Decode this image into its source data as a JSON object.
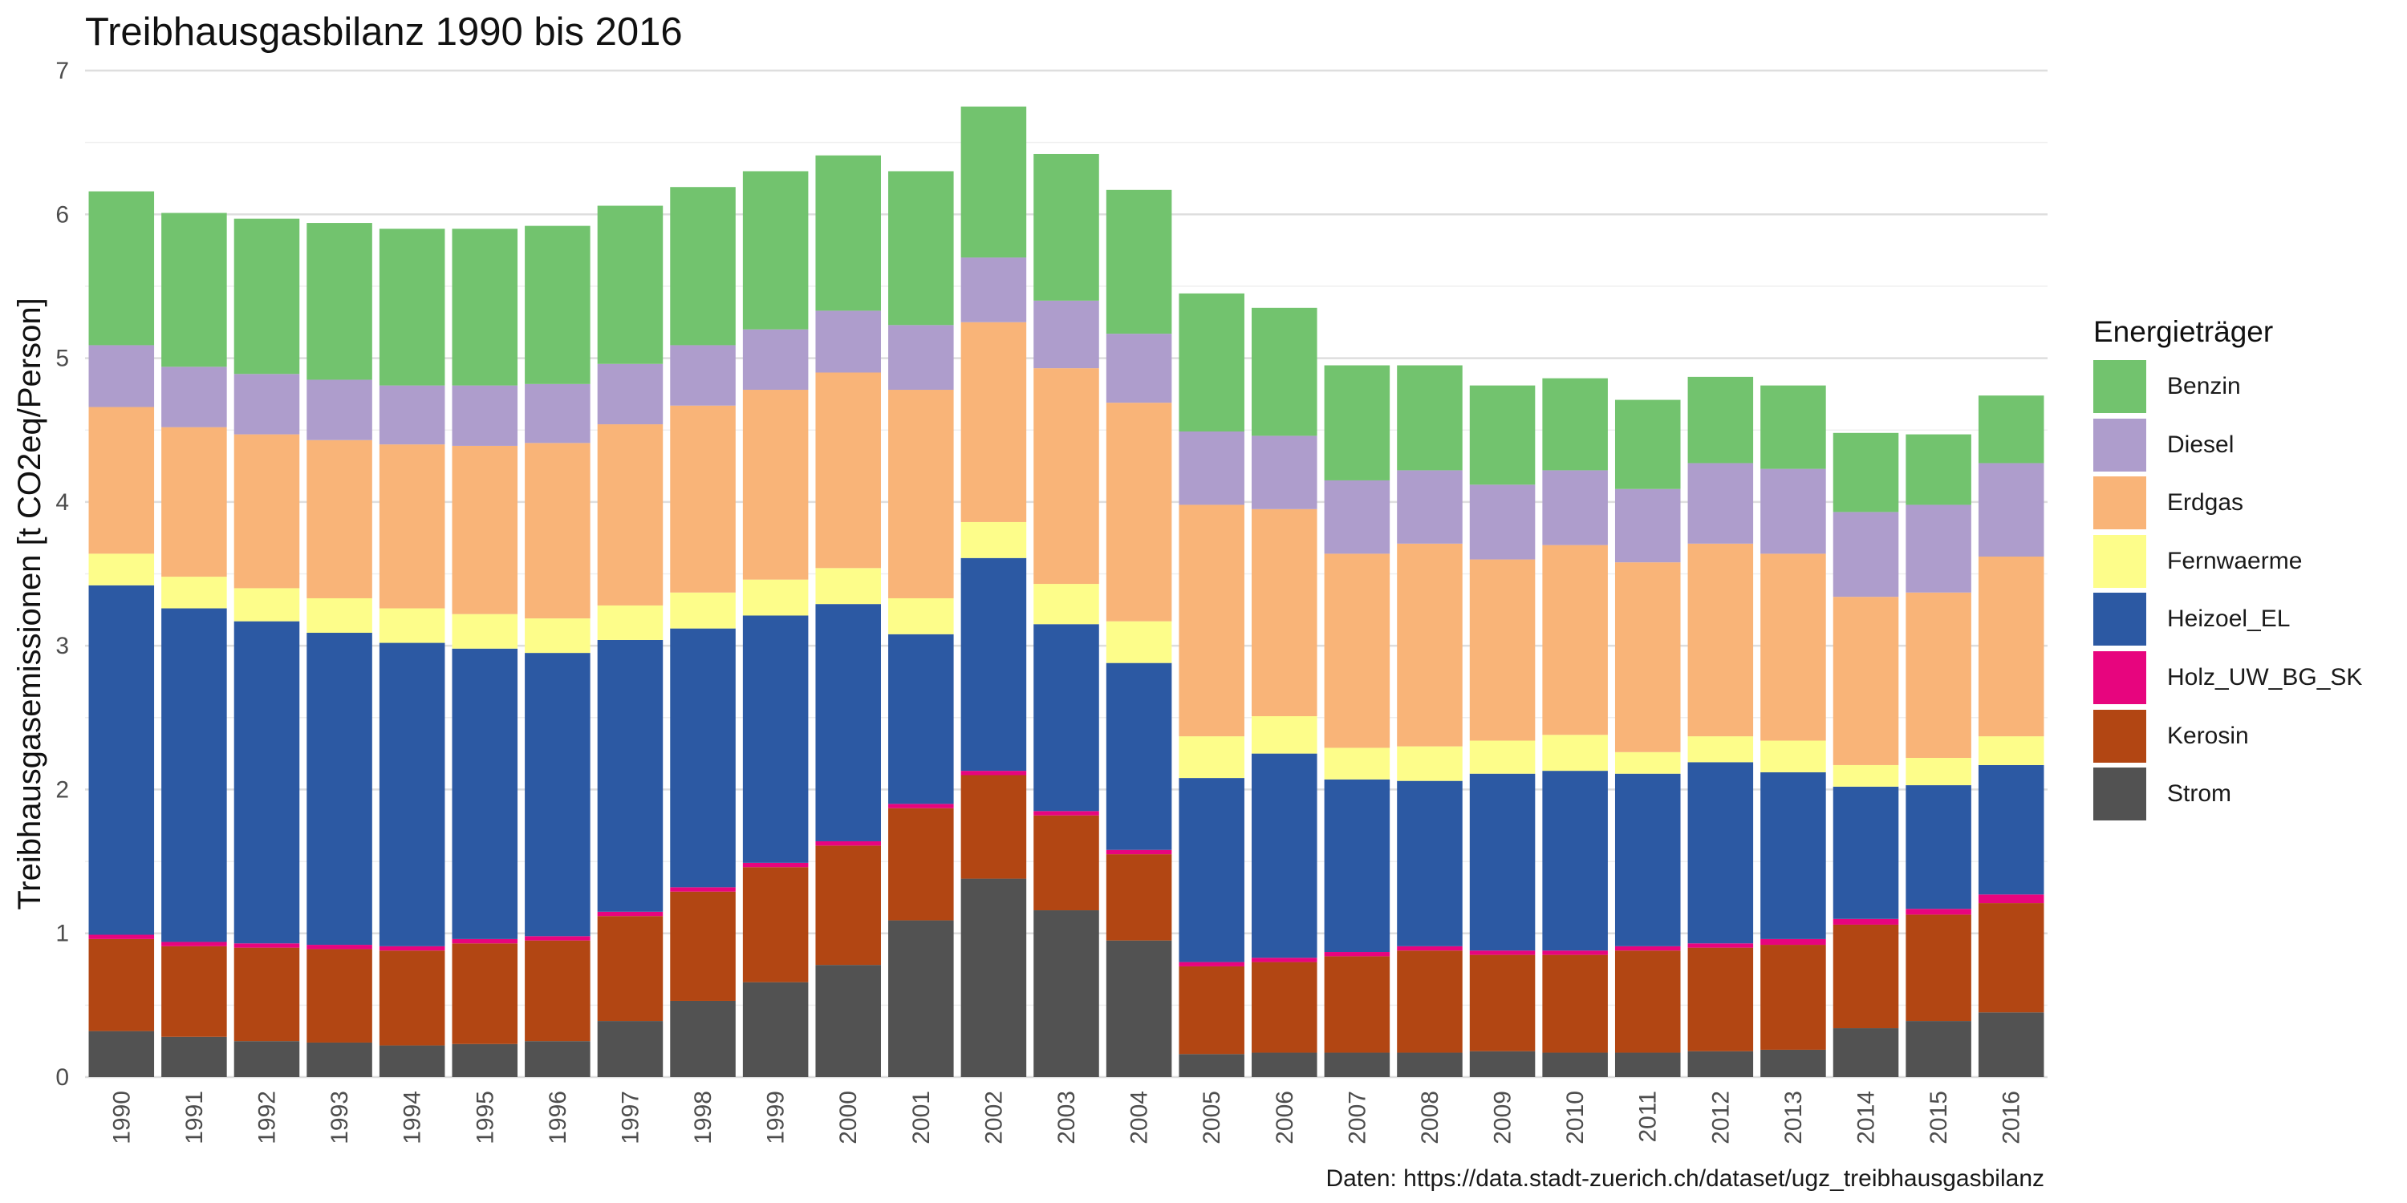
{
  "chart_data": {
    "type": "bar",
    "stacked": true,
    "title": "Treibhausgasbilanz 1990 bis 2016",
    "xlabel": "",
    "ylabel": "Treibhausgasemissionen [t CO2eq/Person]",
    "caption": "Daten: https://data.stadt-zuerich.ch/dataset/ugz_treibhausgasbilanz",
    "legend_title": "Energieträger",
    "legend_position": "right",
    "grid": true,
    "ylim": [
      0,
      7
    ],
    "yticks": [
      "0",
      "1",
      "2",
      "3",
      "4",
      "5",
      "6",
      "7"
    ],
    "categories": [
      "1990",
      "1991",
      "1992",
      "1993",
      "1994",
      "1995",
      "1996",
      "1997",
      "1998",
      "1999",
      "2000",
      "2001",
      "2002",
      "2003",
      "2004",
      "2005",
      "2006",
      "2007",
      "2008",
      "2009",
      "2010",
      "2011",
      "2012",
      "2013",
      "2014",
      "2015",
      "2016"
    ],
    "series": [
      {
        "name": "Strom",
        "color": "#525252",
        "values": [
          0.32,
          0.28,
          0.25,
          0.24,
          0.22,
          0.23,
          0.25,
          0.39,
          0.53,
          0.66,
          0.78,
          1.09,
          1.38,
          1.16,
          0.95,
          0.16,
          0.17,
          0.17,
          0.17,
          0.18,
          0.17,
          0.17,
          0.18,
          0.19,
          0.34,
          0.39,
          0.45
        ]
      },
      {
        "name": "Kerosin",
        "color": "#b24613",
        "values": [
          0.64,
          0.63,
          0.65,
          0.65,
          0.66,
          0.7,
          0.7,
          0.73,
          0.76,
          0.8,
          0.83,
          0.78,
          0.72,
          0.66,
          0.6,
          0.61,
          0.63,
          0.67,
          0.71,
          0.67,
          0.68,
          0.71,
          0.72,
          0.73,
          0.72,
          0.74,
          0.76
        ]
      },
      {
        "name": "Holz_UW_BG_SK",
        "color": "#e7057e",
        "values": [
          0.03,
          0.03,
          0.03,
          0.03,
          0.03,
          0.03,
          0.03,
          0.03,
          0.03,
          0.03,
          0.03,
          0.03,
          0.03,
          0.03,
          0.03,
          0.03,
          0.03,
          0.03,
          0.03,
          0.03,
          0.03,
          0.03,
          0.03,
          0.04,
          0.04,
          0.04,
          0.06
        ]
      },
      {
        "name": "Heizoel_EL",
        "color": "#2c59a3",
        "values": [
          2.43,
          2.32,
          2.24,
          2.17,
          2.11,
          2.02,
          1.97,
          1.89,
          1.8,
          1.72,
          1.65,
          1.18,
          1.48,
          1.3,
          1.3,
          1.28,
          1.42,
          1.2,
          1.15,
          1.23,
          1.25,
          1.2,
          1.26,
          1.16,
          0.92,
          0.86,
          0.9
        ]
      },
      {
        "name": "Fernwaerme",
        "color": "#fdfd8a",
        "values": [
          0.22,
          0.22,
          0.23,
          0.24,
          0.24,
          0.24,
          0.24,
          0.24,
          0.25,
          0.25,
          0.25,
          0.25,
          0.25,
          0.28,
          0.29,
          0.29,
          0.26,
          0.22,
          0.24,
          0.23,
          0.25,
          0.15,
          0.18,
          0.22,
          0.15,
          0.19,
          0.2
        ]
      },
      {
        "name": "Erdgas",
        "color": "#f9b478",
        "values": [
          1.02,
          1.04,
          1.07,
          1.1,
          1.14,
          1.17,
          1.22,
          1.26,
          1.3,
          1.32,
          1.36,
          1.45,
          1.39,
          1.5,
          1.52,
          1.61,
          1.44,
          1.35,
          1.41,
          1.26,
          1.32,
          1.32,
          1.34,
          1.3,
          1.17,
          1.15,
          1.25
        ]
      },
      {
        "name": "Diesel",
        "color": "#ae9dcc",
        "values": [
          0.43,
          0.42,
          0.42,
          0.42,
          0.41,
          0.42,
          0.41,
          0.42,
          0.42,
          0.42,
          0.43,
          0.45,
          0.45,
          0.47,
          0.48,
          0.51,
          0.51,
          0.51,
          0.51,
          0.52,
          0.52,
          0.51,
          0.56,
          0.59,
          0.59,
          0.61,
          0.65
        ]
      },
      {
        "name": "Benzin",
        "color": "#72c36e",
        "values": [
          1.07,
          1.07,
          1.08,
          1.09,
          1.09,
          1.09,
          1.1,
          1.1,
          1.1,
          1.1,
          1.08,
          1.07,
          1.05,
          1.02,
          1.0,
          0.96,
          0.89,
          0.8,
          0.73,
          0.69,
          0.64,
          0.62,
          0.6,
          0.58,
          0.55,
          0.49,
          0.47
        ]
      }
    ]
  }
}
